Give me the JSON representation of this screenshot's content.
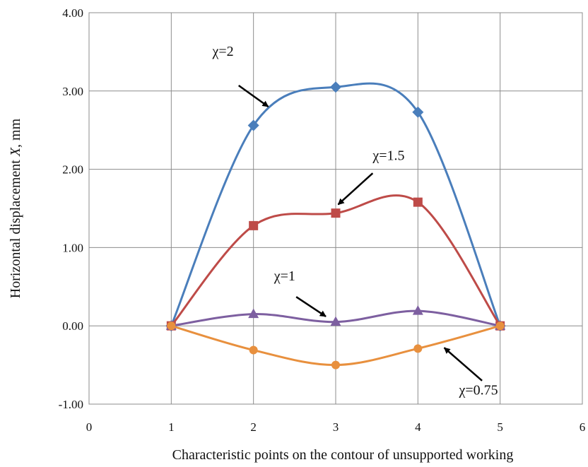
{
  "chart_data": {
    "type": "line",
    "xlabel": "Characteristic points on the contour of unsupported working",
    "ylabel_prefix": "Horizontal displacement ",
    "ylabel_var": "X",
    "ylabel_suffix": ", mm",
    "xlim": [
      0,
      6
    ],
    "ylim": [
      -1,
      4
    ],
    "x_ticks": [
      {
        "v": 0,
        "label": "0"
      },
      {
        "v": 1,
        "label": "1"
      },
      {
        "v": 2,
        "label": "2"
      },
      {
        "v": 3,
        "label": "3"
      },
      {
        "v": 4,
        "label": "4"
      },
      {
        "v": 5,
        "label": "5"
      },
      {
        "v": 6,
        "label": "6"
      }
    ],
    "y_ticks": [
      {
        "v": -1,
        "label": "-1.00"
      },
      {
        "v": 0,
        "label": "0.00"
      },
      {
        "v": 1,
        "label": "1.00"
      },
      {
        "v": 2,
        "label": "2.00"
      },
      {
        "v": 3,
        "label": "3.00"
      },
      {
        "v": 4,
        "label": "4.00"
      }
    ],
    "grid": true,
    "x": [
      1,
      2,
      3,
      4,
      5
    ],
    "series": [
      {
        "name": "χ=2",
        "color": "#4a7ebb",
        "marker": "diamond",
        "values": [
          0.0,
          2.56,
          3.05,
          2.73,
          0.0
        ]
      },
      {
        "name": "χ=1.5",
        "color": "#be4b48",
        "marker": "square",
        "values": [
          0.0,
          1.28,
          1.44,
          1.58,
          0.0
        ]
      },
      {
        "name": "χ=1",
        "color": "#7d5fa0",
        "marker": "triangle",
        "values": [
          0.0,
          0.15,
          0.05,
          0.19,
          0.0
        ]
      },
      {
        "name": "χ=0.75",
        "color": "#e8903e",
        "marker": "circle",
        "values": [
          0.0,
          -0.31,
          -0.5,
          -0.29,
          0.0
        ]
      }
    ],
    "annotations": [
      {
        "text": "χ=2",
        "series": 0,
        "text_at": [
          1.5,
          3.45
        ],
        "arrow_from": [
          1.82,
          3.07
        ],
        "arrow_to": [
          2.18,
          2.8
        ]
      },
      {
        "text": "χ=1.5",
        "series": 1,
        "text_at": [
          3.45,
          2.12
        ],
        "arrow_from": [
          3.45,
          1.95
        ],
        "arrow_to": [
          3.03,
          1.55
        ]
      },
      {
        "text": "χ=1",
        "series": 2,
        "text_at": [
          2.25,
          0.58
        ],
        "arrow_from": [
          2.52,
          0.37
        ],
        "arrow_to": [
          2.88,
          0.12
        ]
      },
      {
        "text": "χ=0.75",
        "series": 3,
        "text_at": [
          4.5,
          -0.88
        ],
        "arrow_from": [
          4.78,
          -0.7
        ],
        "arrow_to": [
          4.32,
          -0.28
        ]
      }
    ]
  }
}
